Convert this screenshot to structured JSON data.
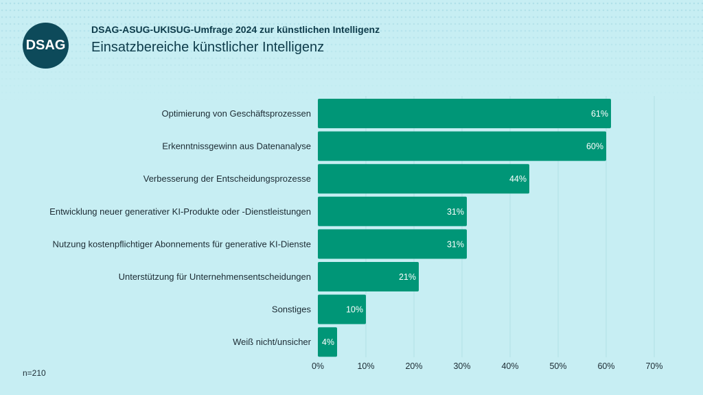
{
  "header": {
    "logo_text": "DSAG",
    "supertitle": "DSAG-ASUG-UKISUG-Umfrage 2024 zur künstlichen Intelligenz",
    "title": "Einsatzbereiche künstlicher Intelligenz"
  },
  "footnote": "n=210",
  "colors": {
    "bar": "#009677",
    "background": "#c7eef3",
    "logo": "#0d4a5a"
  },
  "chart_data": {
    "type": "bar",
    "orientation": "horizontal",
    "categories": [
      "Optimierung von Geschäftsprozessen",
      "Erkenntnissgewinn aus Datenanalyse",
      "Verbesserung der Entscheidungsprozesse",
      "Entwicklung neuer generativer KI-Produkte oder -Dienstleistungen",
      "Nutzung kostenpflichtiger Abonnements für generative KI-Dienste",
      "Unterstützung für Unternehmensentscheidungen",
      "Sonstiges",
      "Weiß nicht/unsicher"
    ],
    "values": [
      61,
      60,
      44,
      31,
      31,
      21,
      10,
      4
    ],
    "data_labels": [
      "61%",
      "60%",
      "44%",
      "31%",
      "31%",
      "21%",
      "10%",
      "4%"
    ],
    "xlim": [
      0,
      70
    ],
    "xticks": [
      "0%",
      "10%",
      "20%",
      "30%",
      "40%",
      "50%",
      "60%",
      "70%"
    ],
    "grid": true,
    "unit": "%"
  }
}
